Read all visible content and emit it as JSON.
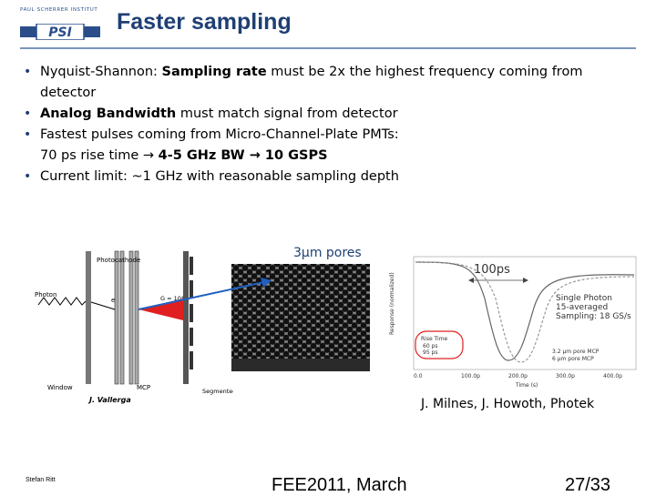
{
  "header": {
    "logo_text": "PAUL SCHERRER INSTITUT",
    "logo_mark": "PSI",
    "title": "Faster sampling"
  },
  "bullets": [
    {
      "parts": [
        {
          "t": "Nyquist-Shannon: ",
          "b": false
        },
        {
          "t": "Sampling rate",
          "b": true
        },
        {
          "t": " must be 2x the highest frequency coming from detector",
          "b": false
        }
      ]
    },
    {
      "parts": [
        {
          "t": "Analog Bandwidth",
          "b": true
        },
        {
          "t": " must match signal from detector",
          "b": false
        }
      ]
    },
    {
      "parts": [
        {
          "t": "Fastest pulses coming from Micro-Channel-Plate PMTs:",
          "b": false
        },
        {
          "t": "\n70 ps rise time → ",
          "b": false
        },
        {
          "t": "4-5 GHz BW → 10 GSPS",
          "b": true
        }
      ]
    },
    {
      "parts": [
        {
          "t": "Current limit: ~1 GHz with reasonable sampling depth",
          "b": false
        }
      ]
    }
  ],
  "figure_left": {
    "labels": {
      "photocathode": "Photocathode",
      "photon": "Photon",
      "electron": "e",
      "gain": "G = 10⁴",
      "window": "Window",
      "mcp": "MCP",
      "anodes": "Segmented  Anodes",
      "author": "J. Vallerga"
    }
  },
  "figure_mid": {
    "label": "3µm pores"
  },
  "figure_right": {
    "label_100ps": "100ps",
    "legend_title": "Single Photon\n15-averaged\nSampling: 18 GS/s",
    "rise_box": {
      "title": "Rise Time",
      "l1": "60 ps",
      "l2": "95 ps"
    },
    "series_labels": [
      "3.2 µm pore MCP",
      "6 µm pore MCP"
    ],
    "ylabel": "Response (normalized)",
    "xlabel": "Time (s)",
    "xticks": [
      "0.0",
      "100.0p",
      "200.0p",
      "300.0p",
      "400.0p"
    ]
  },
  "credit": "J. Milnes, J. Howoth, Photek",
  "footer": {
    "author": "Stefan Ritt",
    "event": "FEE2011, March",
    "page": "27/33"
  },
  "colors": {
    "title": "#1f3f74",
    "accent_red": "#e02020",
    "arrow_blue": "#2060c0"
  }
}
